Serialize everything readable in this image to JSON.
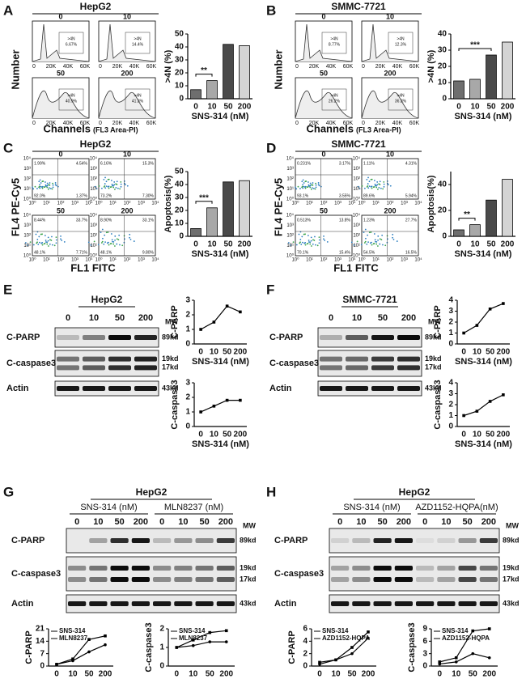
{
  "panels": [
    {
      "letter": "A",
      "title": "HepG2",
      "kind": "cycle",
      "plots": {
        "labels": [
          "0",
          "10",
          "50",
          "200"
        ],
        "gate": ">4N",
        "percents": [
          "6.67%",
          "14.4%",
          "40.9%",
          "41.3%"
        ],
        "ticks": [
          "0",
          "20K",
          "40K",
          "60K"
        ]
      },
      "ylabel": "Number",
      "xlabel": "Channels",
      "xlabel_note": "(FL3 Area-PI)",
      "chart": {
        "type": "bar",
        "categories": [
          "0",
          "10",
          "50",
          "200"
        ],
        "values": [
          7,
          14,
          42,
          41
        ],
        "colors": [
          "#6e6e6e",
          "#a8a8a8",
          "#4a4a4a",
          "#d4d4d4"
        ],
        "ylabel": ">4N (%)",
        "xlabel": "SNS-314 (nM)",
        "ylim": [
          0,
          50
        ],
        "yticks": [
          0,
          10,
          20,
          30,
          40,
          50
        ],
        "significance": "**"
      }
    },
    {
      "letter": "B",
      "title": "SMMC-7721",
      "kind": "cycle",
      "plots": {
        "labels": [
          "0",
          "10",
          "50",
          "200"
        ],
        "gate": ">4N",
        "percents": [
          "8.77%",
          "12.3%",
          "26.2%",
          "36.3%"
        ],
        "ticks": [
          "0",
          "20K",
          "40K",
          "60K"
        ]
      },
      "ylabel": "Number",
      "xlabel": "Channels",
      "xlabel_note": "(FL3 Area-PI)",
      "chart": {
        "type": "bar",
        "categories": [
          "0",
          "10",
          "50",
          "200"
        ],
        "values": [
          11,
          12,
          27,
          35
        ],
        "colors": [
          "#6e6e6e",
          "#a8a8a8",
          "#4a4a4a",
          "#d4d4d4"
        ],
        "ylabel": ">4N (%)",
        "xlabel": "SNS-314 (nM)",
        "ylim": [
          0,
          40
        ],
        "yticks": [
          0,
          10,
          20,
          30,
          40
        ],
        "significance": "***"
      }
    },
    {
      "letter": "C",
      "title": "HepG2",
      "kind": "apoptosis",
      "plots": {
        "labels": [
          "0",
          "10",
          "50",
          "200"
        ],
        "quadrants": [
          [
            "1.99%",
            "4.54%",
            "92.0%",
            "1.37%"
          ],
          [
            "6.16%",
            "15.3%",
            "73.2%",
            "7.30%"
          ],
          [
            "8.44%",
            "33.7%",
            "48.1%",
            "7.71%"
          ],
          [
            "8.90%",
            "33.1%",
            "48.1%",
            "9.80%"
          ]
        ],
        "ticks": [
          "10⁰",
          "10¹",
          "10²",
          "10³",
          "10⁴"
        ]
      },
      "ylabel": "FL4 PE-Cy5",
      "xlabel": "FL1 FITC",
      "chart": {
        "type": "bar",
        "categories": [
          "0",
          "10",
          "50",
          "200"
        ],
        "values": [
          6,
          22,
          42,
          43
        ],
        "colors": [
          "#6e6e6e",
          "#a8a8a8",
          "#4a4a4a",
          "#d4d4d4"
        ],
        "ylabel": "Apoptosis(%)",
        "xlabel": "SNS-314 (nM)",
        "ylim": [
          0,
          50
        ],
        "yticks": [
          0,
          10,
          20,
          30,
          40,
          50
        ],
        "significance": "***"
      }
    },
    {
      "letter": "D",
      "title": "SMMC-7721",
      "kind": "apoptosis",
      "plots": {
        "labels": [
          "0",
          "10",
          "50",
          "200"
        ],
        "quadrants": [
          [
            "0.231%",
            "3.17%",
            "93.1%",
            "3.55%"
          ],
          [
            "1.11%",
            "4.31%",
            "89.6%",
            "5.94%"
          ],
          [
            "0.513%",
            "13.8%",
            "70.1%",
            "15.4%"
          ],
          [
            "1.23%",
            "27.7%",
            "54.5%",
            "16.5%"
          ]
        ],
        "ticks": [
          "10⁰",
          "10¹",
          "10²",
          "10³",
          "10⁴"
        ]
      },
      "ylabel": "FL4 PE-Cy5",
      "xlabel": "FL1 FITC",
      "chart": {
        "type": "bar",
        "categories": [
          "0",
          "10",
          "50",
          "200"
        ],
        "values": [
          5,
          9,
          28,
          44
        ],
        "colors": [
          "#6e6e6e",
          "#a8a8a8",
          "#4a4a4a",
          "#d4d4d4"
        ],
        "ylabel": "Apoptosis(%)",
        "xlabel": "SNS-314 (nM)",
        "ylim": [
          0,
          50
        ],
        "yticks": [
          0,
          20,
          40
        ],
        "significance": "**"
      }
    },
    {
      "letter": "E",
      "title": "HepG2",
      "kind": "blot",
      "lanes": [
        "0",
        "10",
        "50",
        "200"
      ],
      "mw_label": "MW",
      "rows": [
        {
          "name": "C-PARP",
          "mw": [
            "89kd"
          ]
        },
        {
          "name": "C-caspase3",
          "mw": [
            "19kd",
            "17kd"
          ]
        },
        {
          "name": "Actin",
          "mw": [
            "43kd"
          ]
        }
      ],
      "charts": [
        {
          "type": "line",
          "ylabel": "C-PARP",
          "categories": [
            "0",
            "10",
            "50",
            "200"
          ],
          "values": [
            1,
            1.5,
            2.6,
            2.2
          ],
          "color": "#000000",
          "ylim": [
            0,
            3
          ],
          "yticks": [
            0,
            1,
            2,
            3
          ],
          "xlabel": "SNS-314 (nM)"
        },
        {
          "type": "line",
          "ylabel": "C-caspase3",
          "categories": [
            "0",
            "10",
            "50",
            "200"
          ],
          "values": [
            1,
            1.4,
            1.8,
            1.8
          ],
          "color": "#000000",
          "ylim": [
            0,
            3
          ],
          "yticks": [
            0,
            1,
            2,
            3
          ],
          "xlabel": "SNS-314 (nM)"
        }
      ]
    },
    {
      "letter": "F",
      "title": "SMMC-7721",
      "kind": "blot",
      "lanes": [
        "0",
        "10",
        "50",
        "200"
      ],
      "mw_label": "MW",
      "rows": [
        {
          "name": "C-PARP",
          "mw": [
            "89kd"
          ]
        },
        {
          "name": "C-caspase3",
          "mw": [
            "19kd",
            "17kd"
          ]
        },
        {
          "name": "Actin",
          "mw": [
            "43kd"
          ]
        }
      ],
      "charts": [
        {
          "type": "line",
          "ylabel": "C-PARP",
          "categories": [
            "0",
            "10",
            "50",
            "200"
          ],
          "values": [
            1,
            1.7,
            3.2,
            3.7
          ],
          "color": "#000000",
          "ylim": [
            0,
            4
          ],
          "yticks": [
            0,
            1,
            2,
            3,
            4
          ],
          "xlabel": "SNS-314 (nM)"
        },
        {
          "type": "line",
          "ylabel": "C-caspase3",
          "categories": [
            "0",
            "10",
            "50",
            "200"
          ],
          "values": [
            1,
            1.4,
            2.3,
            2.9
          ],
          "color": "#000000",
          "ylim": [
            0,
            4
          ],
          "yticks": [
            0,
            1,
            2,
            3,
            4
          ],
          "xlabel": "SNS-314 (nM)"
        }
      ]
    },
    {
      "letter": "G",
      "title": "HepG2",
      "kind": "blot2",
      "mw_label": "MW",
      "groups": [
        {
          "name": "SNS-314 (nM)",
          "lanes": [
            "0",
            "10",
            "50",
            "200"
          ]
        },
        {
          "name": "MLN8237 (nM)",
          "lanes": [
            "0",
            "10",
            "50",
            "200"
          ]
        }
      ],
      "rows": [
        {
          "name": "C-PARP",
          "mw": [
            "89kd"
          ]
        },
        {
          "name": "C-caspase3",
          "mw": [
            "19kd",
            "17kd"
          ]
        },
        {
          "name": "Actin",
          "mw": [
            "43kd"
          ]
        }
      ],
      "charts": [
        {
          "type": "line",
          "ylabel": "C-PARP",
          "categories": [
            "0",
            "10",
            "50",
            "200"
          ],
          "series": [
            {
              "name": "SNS-314",
              "color": "#000000",
              "values": [
                1,
                4,
                15,
                17
              ]
            },
            {
              "name": "MLN8237",
              "color": "#000000",
              "values": [
                1,
                3,
                8,
                12
              ]
            }
          ],
          "ylim": [
            0,
            21
          ],
          "yticks": [
            0,
            7,
            14,
            21
          ]
        },
        {
          "type": "line",
          "ylabel": "C-caspase3",
          "categories": [
            "0",
            "10",
            "50",
            "200"
          ],
          "series": [
            {
              "name": "SNS-314",
              "color": "#000000",
              "values": [
                1,
                1.4,
                1.8,
                1.9
              ]
            },
            {
              "name": "MLN8237",
              "color": "#000000",
              "values": [
                1,
                1.1,
                1.3,
                1.3
              ]
            }
          ],
          "ylim": [
            0,
            2
          ],
          "yticks": [
            0,
            1,
            2
          ]
        }
      ]
    },
    {
      "letter": "H",
      "title": "HepG2",
      "kind": "blot2",
      "mw_label": "MW",
      "groups": [
        {
          "name": "SNS-314 (nM)",
          "lanes": [
            "0",
            "10",
            "50",
            "200"
          ]
        },
        {
          "name": "AZD1152-HQPA(nM)",
          "lanes": [
            "0",
            "10",
            "50",
            "200"
          ]
        }
      ],
      "rows": [
        {
          "name": "C-PARP",
          "mw": [
            "89kd"
          ]
        },
        {
          "name": "C-caspase3",
          "mw": [
            "19kd",
            "17kd"
          ]
        },
        {
          "name": "Actin",
          "mw": [
            "43kd"
          ]
        }
      ],
      "charts": [
        {
          "type": "line",
          "ylabel": "C-PARP",
          "categories": [
            "0",
            "10",
            "50",
            "200"
          ],
          "series": [
            {
              "name": "SNS-314",
              "color": "#000000",
              "values": [
                0.6,
                1,
                3,
                5.5
              ]
            },
            {
              "name": "AZD1152-HQPA",
              "color": "#000000",
              "values": [
                0.3,
                1,
                2,
                4.5
              ]
            }
          ],
          "ylim": [
            0,
            6
          ],
          "yticks": [
            0,
            2,
            4,
            6
          ]
        },
        {
          "type": "line",
          "ylabel": "C-caspase3",
          "categories": [
            "0",
            "10",
            "50",
            "200"
          ],
          "series": [
            {
              "name": "SNS-314",
              "color": "#000000",
              "values": [
                1,
                2,
                8.5,
                9
              ]
            },
            {
              "name": "AZD1152-HQPA",
              "color": "#000000",
              "values": [
                0.5,
                1,
                3,
                2
              ]
            }
          ],
          "ylim": [
            0,
            9
          ],
          "yticks": [
            0,
            3,
            6,
            9
          ]
        }
      ]
    }
  ]
}
